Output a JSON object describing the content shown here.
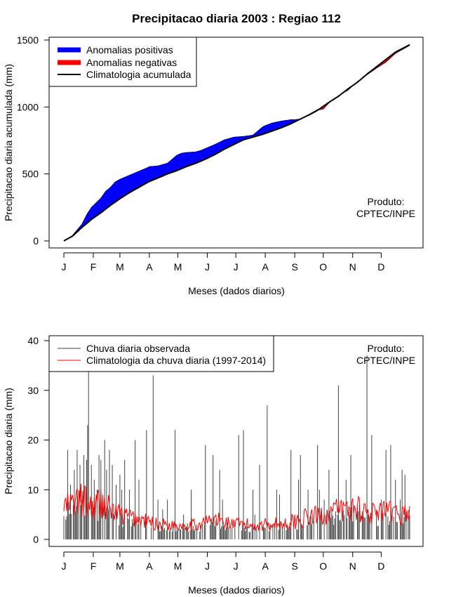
{
  "colors": {
    "positive": "#0000ff",
    "negative": "#ff0000",
    "climatology_line": "#000000",
    "observed_bars": "#444444",
    "climatology_daily": "#ff0000"
  },
  "chart_data": [
    {
      "type": "area",
      "title": "Precipitacao diaria 2003 : Regiao 112",
      "xlabel": "Meses (dados diarios)",
      "ylabel": "Precipitacao diaria acumulada (mm)",
      "xlim": [
        1,
        365
      ],
      "ylim": [
        0,
        1500
      ],
      "yticks": [
        0,
        500,
        1000,
        1500
      ],
      "month_labels": [
        "J",
        "F",
        "M",
        "A",
        "M",
        "J",
        "J",
        "A",
        "S",
        "O",
        "N",
        "D"
      ],
      "month_start_days": [
        1,
        32,
        60,
        91,
        121,
        152,
        182,
        213,
        244,
        274,
        305,
        335
      ],
      "legend": [
        "Anomalias positivas",
        "Anomalias negativas",
        "Climatologia acumulada"
      ],
      "annotation": [
        "Produto:",
        "CPTEC/INPE"
      ],
      "observed_cumulative": {
        "days": [
          1,
          10,
          20,
          25,
          30,
          35,
          40,
          45,
          50,
          55,
          60,
          70,
          80,
          90,
          91,
          100,
          110,
          120,
          125,
          130,
          140,
          145,
          150,
          160,
          170,
          180,
          190,
          200,
          210,
          212,
          220,
          230,
          240,
          245,
          250,
          260,
          270,
          274,
          280,
          290,
          300,
          310,
          320,
          330,
          340,
          350,
          365
        ],
        "values": [
          0,
          40,
          125,
          195,
          250,
          285,
          320,
          370,
          400,
          440,
          460,
          490,
          520,
          550,
          555,
          560,
          580,
          640,
          655,
          660,
          665,
          675,
          690,
          720,
          755,
          775,
          780,
          790,
          850,
          858,
          880,
          895,
          905,
          906,
          910,
          940,
          980,
          985,
          1030,
          1085,
          1125,
          1190,
          1240,
          1290,
          1335,
          1400,
          1460
        ]
      },
      "climatology_cumulative": {
        "days": [
          1,
          10,
          20,
          30,
          40,
          50,
          60,
          70,
          80,
          90,
          100,
          110,
          120,
          130,
          140,
          150,
          160,
          170,
          180,
          190,
          200,
          210,
          220,
          230,
          240,
          250,
          260,
          270,
          280,
          290,
          300,
          310,
          320,
          330,
          340,
          350,
          365
        ],
        "values": [
          0,
          35,
          100,
          160,
          210,
          265,
          315,
          360,
          400,
          440,
          470,
          500,
          525,
          555,
          580,
          610,
          645,
          685,
          720,
          755,
          775,
          795,
          820,
          845,
          875,
          910,
          945,
          985,
          1035,
          1080,
          1135,
          1185,
          1245,
          1300,
          1355,
          1410,
          1465
        ]
      }
    },
    {
      "type": "bar",
      "xlabel": "Meses (dados diarios)",
      "ylabel": "Precipitacao diaria (mm)",
      "xlim": [
        1,
        365
      ],
      "ylim": [
        0,
        40
      ],
      "yticks": [
        0,
        10,
        20,
        30,
        40
      ],
      "month_labels": [
        "J",
        "F",
        "M",
        "A",
        "M",
        "J",
        "J",
        "A",
        "S",
        "O",
        "N",
        "D"
      ],
      "month_start_days": [
        1,
        32,
        60,
        91,
        121,
        152,
        182,
        213,
        244,
        274,
        305,
        335
      ],
      "legend": [
        "Chuva diaria observada",
        "Climatologia da chuva diaria (1997-2014)"
      ],
      "annotation": [
        "Produto:",
        "CPTEC/INPE"
      ],
      "observed_peaks": {
        "days": [
          3,
          5,
          8,
          12,
          15,
          18,
          20,
          22,
          24,
          25,
          26,
          27,
          30,
          33,
          36,
          38,
          40,
          42,
          44,
          46,
          49,
          52,
          56,
          60,
          62,
          65,
          70,
          76,
          80,
          88,
          95,
          100,
          105,
          110,
          118,
          127,
          135,
          150,
          158,
          165,
          168,
          185,
          190,
          200,
          202,
          207,
          215,
          225,
          228,
          240,
          248,
          250,
          258,
          268,
          270,
          275,
          280,
          290,
          298,
          303,
          312,
          320,
          325,
          330,
          335,
          340,
          345,
          350,
          355,
          357,
          360,
          362
        ],
        "values": [
          4,
          18,
          11,
          14,
          18,
          15,
          8,
          17,
          9,
          16,
          23,
          34,
          15,
          12,
          10,
          17,
          16,
          9,
          20,
          14,
          18,
          15,
          11,
          13,
          10,
          16,
          10,
          20,
          12,
          22,
          33,
          8,
          6,
          8,
          22,
          5,
          10,
          19,
          17,
          14,
          8,
          21,
          22,
          10,
          5,
          15,
          27,
          10,
          9,
          18,
          12,
          17,
          10,
          19,
          10,
          8,
          14,
          31,
          12,
          17,
          7,
          37,
          21,
          6,
          8,
          18,
          19,
          12,
          8,
          14,
          13,
          5
        ]
      },
      "climatology_daily": {
        "days": [
          1,
          10,
          20,
          30,
          40,
          50,
          60,
          70,
          80,
          90,
          100,
          110,
          120,
          130,
          140,
          150,
          160,
          170,
          180,
          190,
          200,
          210,
          220,
          230,
          240,
          250,
          260,
          270,
          280,
          290,
          300,
          310,
          320,
          330,
          340,
          350,
          365
        ],
        "values": [
          6.5,
          7,
          8,
          6.5,
          7.5,
          6,
          5,
          4.5,
          4,
          3.5,
          3,
          3,
          2.8,
          3,
          2.8,
          3.5,
          4,
          3.5,
          3,
          3,
          2.8,
          3,
          3.2,
          3,
          3.5,
          4,
          4.5,
          4.8,
          5.5,
          5.8,
          6,
          6.5,
          5.5,
          5,
          5.5,
          5,
          5.5
        ]
      }
    }
  ]
}
